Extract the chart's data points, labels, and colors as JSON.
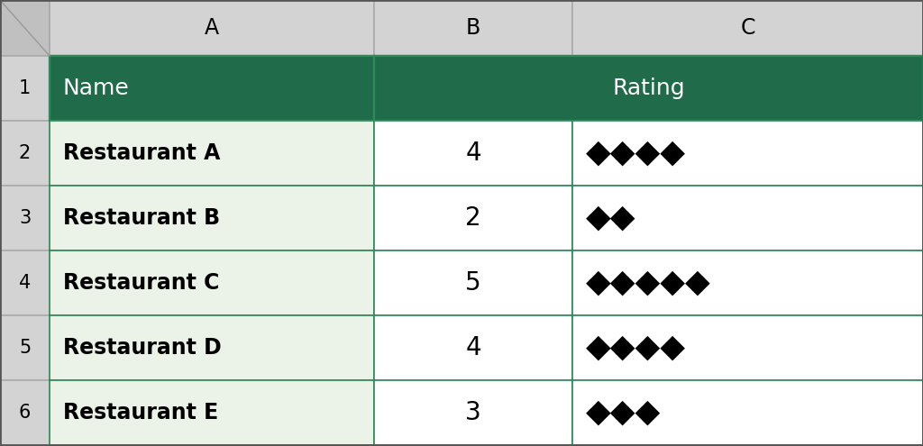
{
  "col_headers": [
    "A",
    "B",
    "C"
  ],
  "row_numbers": [
    "1",
    "2",
    "3",
    "4",
    "5",
    "6"
  ],
  "header_row": [
    "Name",
    "Rating",
    ""
  ],
  "restaurants": [
    "Restaurant A",
    "Restaurant B",
    "Restaurant C",
    "Restaurant D",
    "Restaurant E"
  ],
  "ratings": [
    4,
    2,
    5,
    4,
    3
  ],
  "header_bg": "#1F6B4A",
  "header_text": "#FFFFFF",
  "name_col_bg": "#EBF3E8",
  "cell_bg": "#FFFFFF",
  "grid_color": "#2E8B57",
  "row_number_bg": "#E0E0E0",
  "col_header_bg": "#D3D3D3",
  "corner_bg": "#C0C0C0",
  "border_color": "#2E8B57",
  "diamond_char": "◆",
  "text_color": "#000000",
  "row_header_border": "#AAAAAA",
  "figsize": [
    10.24,
    4.95
  ],
  "dpi": 100
}
